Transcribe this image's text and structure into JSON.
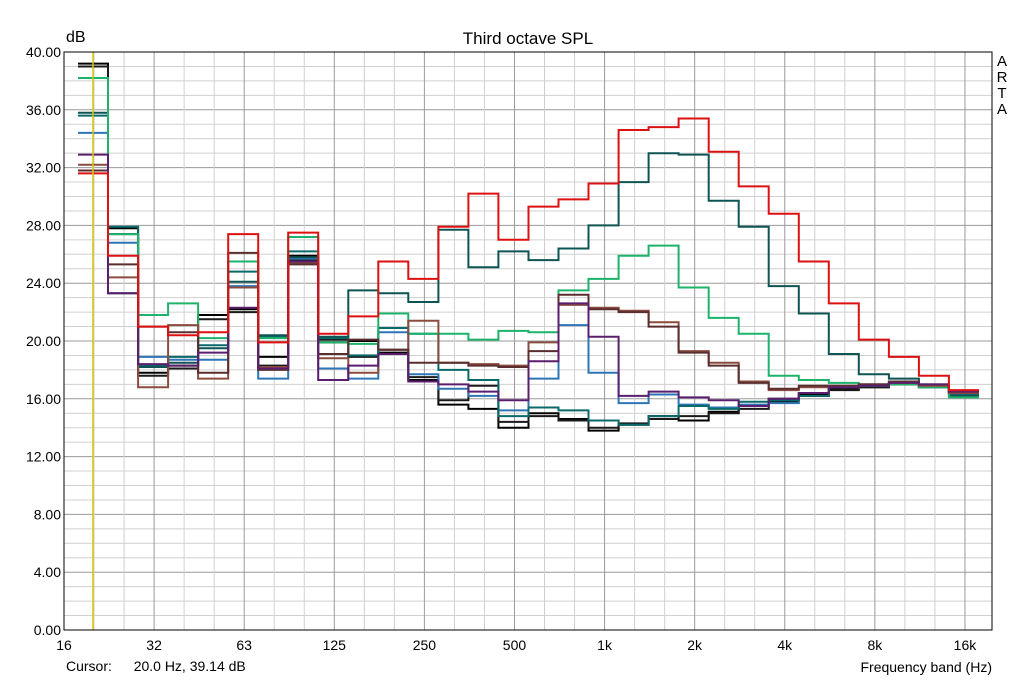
{
  "chart_data": {
    "type": "step-line",
    "title": "Third octave SPL",
    "ylabel": "dB",
    "xlabel": "Frequency band (Hz)",
    "brand": "ARTA",
    "ylim": [
      0,
      40
    ],
    "y_ticks": [
      "0.00",
      "4.00",
      "8.00",
      "12.00",
      "16.00",
      "20.00",
      "24.00",
      "28.00",
      "32.00",
      "36.00",
      "40.00"
    ],
    "x_ticks": [
      "16",
      "32",
      "63",
      "125",
      "250",
      "500",
      "1k",
      "2k",
      "4k",
      "8k",
      "16k"
    ],
    "bands": [
      "20",
      "25",
      "31.5",
      "40",
      "50",
      "63",
      "80",
      "100",
      "125",
      "160",
      "200",
      "250",
      "315",
      "400",
      "500",
      "630",
      "800",
      "1k",
      "1.25k",
      "1.6k",
      "2k",
      "2.5k",
      "3.15k",
      "4k",
      "5k",
      "6.3k",
      "8k",
      "10k",
      "12.5k",
      "16k"
    ],
    "cursor": {
      "label": "Cursor:",
      "value": "20.0 Hz, 39.14 dB",
      "frequency_hz": 20.0
    },
    "grid": true,
    "series": [
      {
        "color": "#000000",
        "values": [
          39.2,
          27.8,
          17.8,
          18.3,
          21.8,
          22.2,
          18.9,
          25.9,
          19.9,
          20.0,
          19.2,
          17.3,
          15.6,
          15.3,
          14.0,
          15.0,
          14.6,
          13.8,
          14.2,
          14.8,
          14.5,
          15.1,
          15.5,
          16.0,
          16.3,
          16.7,
          16.8,
          17.0,
          16.8,
          16.4
        ]
      },
      {
        "color": "#1a1a1a",
        "values": [
          39.0,
          27.4,
          17.6,
          18.1,
          21.5,
          22.0,
          18.3,
          25.6,
          20.1,
          18.9,
          19.4,
          17.5,
          15.9,
          16.9,
          14.4,
          14.8,
          14.5,
          14.0,
          14.3,
          14.6,
          14.8,
          15.0,
          15.3,
          15.8,
          16.2,
          16.6,
          16.8,
          17.0,
          16.9,
          16.5
        ]
      },
      {
        "color": "#2e75b6",
        "values": [
          34.4,
          26.8,
          18.9,
          18.7,
          18.7,
          23.8,
          17.4,
          25.7,
          18.1,
          17.4,
          20.6,
          17.7,
          16.7,
          16.2,
          15.2,
          17.4,
          21.1,
          17.8,
          15.7,
          16.3,
          15.6,
          15.4,
          15.6,
          15.7,
          16.4,
          16.8,
          17.0,
          17.1,
          16.9,
          16.5
        ]
      },
      {
        "color": "#0a6a6a",
        "values": [
          35.6,
          27.9,
          18.3,
          18.9,
          19.7,
          24.8,
          20.3,
          26.2,
          20.2,
          19.0,
          20.9,
          20.5,
          18.0,
          17.3,
          14.8,
          15.4,
          15.2,
          14.5,
          14.2,
          14.8,
          15.5,
          15.3,
          15.8,
          15.9,
          16.2,
          16.8,
          16.9,
          17.1,
          16.8,
          16.3
        ]
      },
      {
        "color": "#0f5454",
        "values": [
          35.8,
          23.3,
          18.2,
          18.5,
          19.5,
          24.1,
          20.4,
          25.8,
          20.3,
          23.5,
          23.3,
          22.7,
          27.7,
          25.1,
          26.2,
          25.6,
          26.4,
          28.0,
          31.0,
          33.0,
          32.9,
          29.7,
          27.9,
          23.8,
          21.9,
          19.1,
          17.7,
          17.4,
          16.9,
          16.2
        ]
      },
      {
        "color": "#1db36b",
        "values": [
          38.2,
          27.4,
          21.8,
          22.6,
          20.2,
          25.5,
          20.2,
          27.2,
          19.9,
          19.8,
          21.9,
          20.5,
          20.5,
          20.1,
          20.7,
          20.6,
          23.5,
          24.3,
          25.9,
          26.6,
          23.7,
          21.6,
          20.5,
          17.6,
          17.3,
          17.1,
          16.9,
          17.0,
          16.8,
          16.1
        ]
      },
      {
        "color": "#8b4b3f",
        "values": [
          32.2,
          24.4,
          16.8,
          21.1,
          17.4,
          23.7,
          18.2,
          25.4,
          18.8,
          17.8,
          19.1,
          21.4,
          18.5,
          18.4,
          18.3,
          19.9,
          22.5,
          22.3,
          22.1,
          21.3,
          19.3,
          18.5,
          17.2,
          16.6,
          16.8,
          16.8,
          17.0,
          17.1,
          16.9,
          16.4
        ]
      },
      {
        "color": "#5a2e2e",
        "values": [
          31.8,
          25.3,
          21.0,
          20.6,
          17.8,
          26.1,
          18.0,
          25.3,
          19.1,
          20.1,
          19.4,
          18.5,
          18.5,
          18.3,
          18.2,
          19.3,
          23.2,
          22.2,
          22.0,
          21.0,
          19.2,
          18.3,
          17.1,
          16.7,
          16.9,
          16.9,
          17.0,
          17.2,
          17.0,
          16.5
        ]
      },
      {
        "color": "#5b1e6e",
        "values": [
          32.9,
          23.3,
          18.4,
          18.3,
          19.2,
          22.3,
          18.1,
          25.5,
          17.3,
          18.3,
          19.1,
          17.2,
          17.0,
          16.5,
          15.9,
          18.6,
          22.6,
          20.3,
          16.2,
          16.5,
          16.1,
          15.9,
          15.5,
          16.0,
          16.4,
          16.8,
          16.9,
          17.1,
          17.0,
          16.5
        ]
      },
      {
        "color": "#dd1111",
        "values": [
          31.6,
          25.9,
          21.0,
          20.4,
          20.6,
          27.4,
          19.9,
          27.5,
          20.5,
          21.7,
          25.5,
          24.3,
          27.9,
          30.2,
          27.0,
          29.3,
          29.8,
          30.9,
          34.6,
          34.8,
          35.4,
          33.1,
          30.7,
          28.8,
          25.5,
          22.6,
          20.1,
          18.9,
          17.6,
          16.6
        ]
      }
    ]
  }
}
